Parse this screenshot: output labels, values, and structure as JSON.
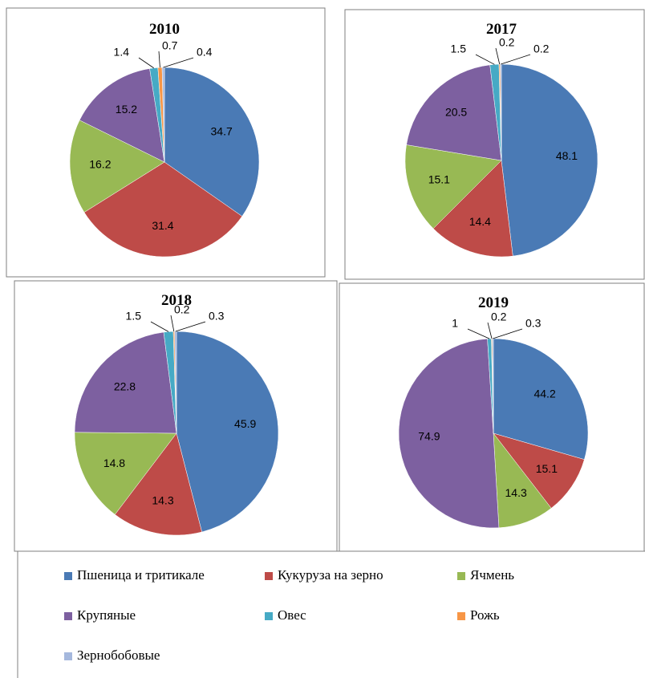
{
  "legend": {
    "names": [
      "Пшеница и тритикале",
      "Кукуруза на зерно",
      "Ячмень",
      "Крупяные",
      "Овес",
      "Рожь",
      "Зернобобовые"
    ],
    "colors": [
      "#4a7ab5",
      "#be4b48",
      "#98b954",
      "#7d60a0",
      "#46aac5",
      "#f79646",
      "#a5b8dd"
    ]
  },
  "chart_data": [
    {
      "type": "pie",
      "title": "2010",
      "values": [
        34.7,
        31.4,
        16.2,
        15.2,
        1.4,
        0.7,
        0.4
      ]
    },
    {
      "type": "pie",
      "title": "2017",
      "values": [
        48.1,
        14.4,
        15.1,
        20.5,
        1.5,
        0.2,
        0.2
      ]
    },
    {
      "type": "pie",
      "title": "2018",
      "values": [
        45.9,
        14.3,
        14.8,
        22.8,
        1.5,
        0.2,
        0.3
      ]
    },
    {
      "type": "pie",
      "title": "2019",
      "values": [
        44.2,
        15.1,
        14.3,
        74.9,
        1,
        0.2,
        0.3
      ]
    }
  ]
}
